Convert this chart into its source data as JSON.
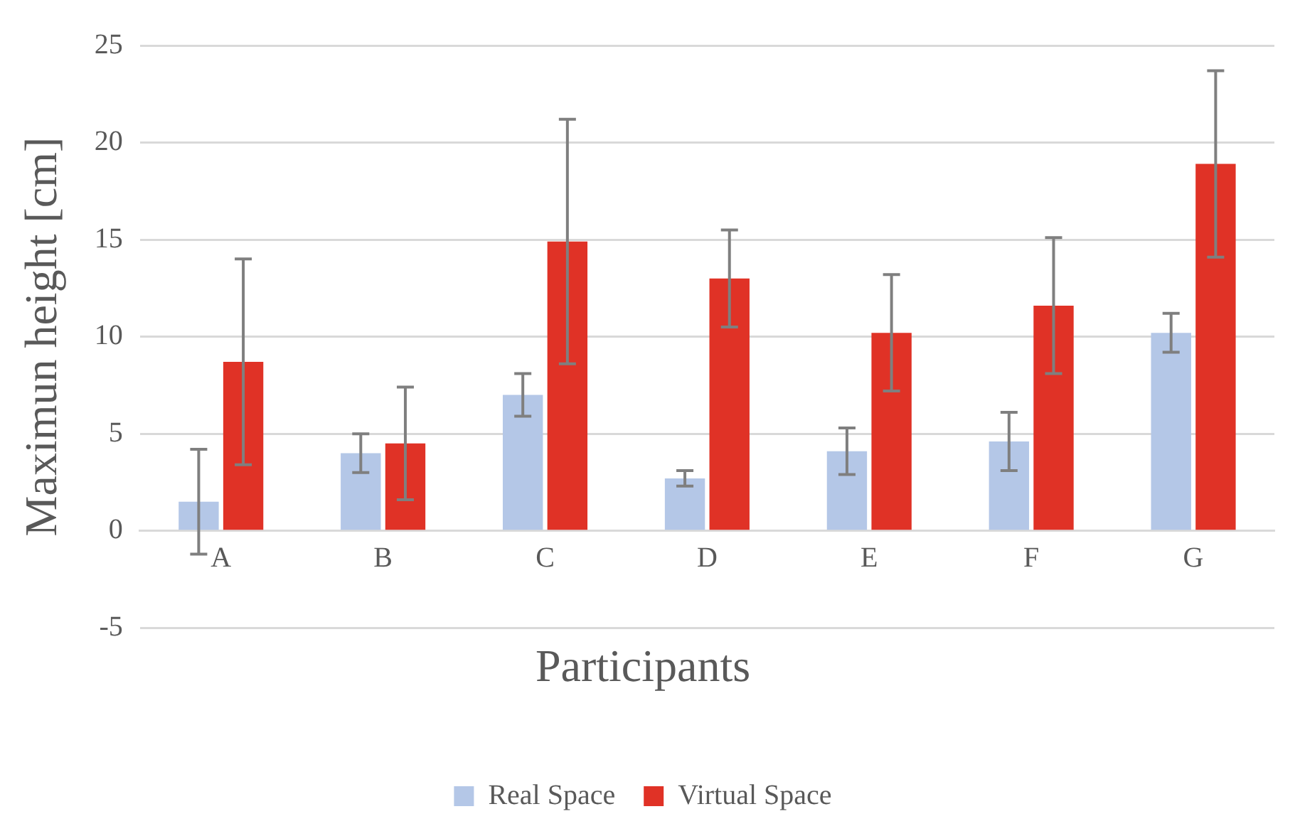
{
  "chart_data": {
    "type": "bar",
    "xlabel": "Participants",
    "ylabel": "Maximun height [cm]",
    "categories": [
      "A",
      "B",
      "C",
      "D",
      "E",
      "F",
      "G"
    ],
    "series": [
      {
        "name": "Real Space",
        "color": "#b4c7e7",
        "values": [
          1.5,
          4.0,
          7.0,
          2.7,
          4.1,
          4.6,
          10.2
        ],
        "errors": [
          2.7,
          1.0,
          1.1,
          0.4,
          1.2,
          1.5,
          1.0
        ]
      },
      {
        "name": "Virtual Space",
        "color": "#e03226",
        "values": [
          8.7,
          4.5,
          14.9,
          13.0,
          10.2,
          11.6,
          18.9
        ],
        "errors": [
          5.3,
          2.9,
          6.3,
          2.5,
          3.0,
          3.5,
          4.8
        ]
      }
    ],
    "ylim": [
      -5,
      25
    ],
    "yticks": [
      -5,
      0,
      5,
      10,
      15,
      20,
      25
    ],
    "grid": "y",
    "legend": "bottom"
  }
}
